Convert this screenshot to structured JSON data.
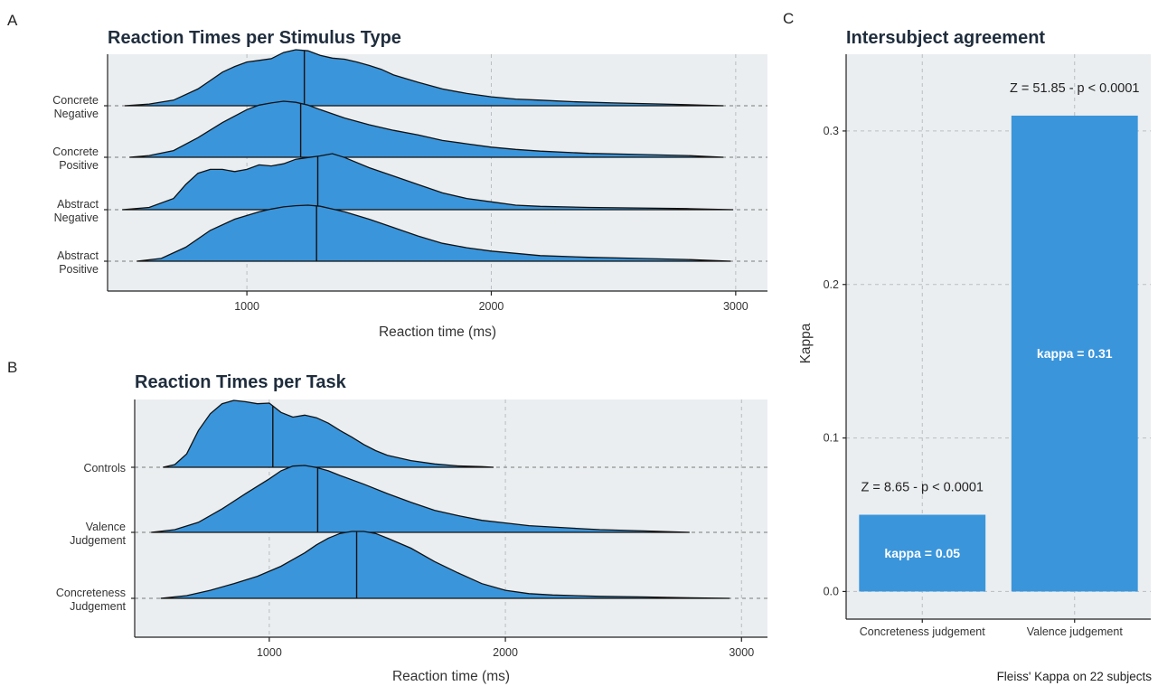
{
  "panels": {
    "a": "A",
    "b": "B",
    "c": "C"
  },
  "chart_data": [
    {
      "type": "ridgeline",
      "title": "Reaction Times per Stimulus Type",
      "xlabel": "Reaction time (ms)",
      "ylabel": "",
      "xlim": [
        430,
        3130
      ],
      "xticks": [
        1000,
        2000,
        3000
      ],
      "grid": true,
      "series": [
        {
          "name": "Concrete Negative",
          "label_lines": [
            "Concrete",
            "Negative"
          ],
          "median": 1235,
          "x": [
            500,
            600,
            700,
            800,
            850,
            900,
            950,
            1000,
            1050,
            1100,
            1150,
            1200,
            1250,
            1300,
            1350,
            1400,
            1450,
            1500,
            1550,
            1600,
            1700,
            1800,
            1900,
            2000,
            2100,
            2200,
            2350,
            2500,
            2700,
            2950
          ],
          "y": [
            0.0,
            0.03,
            0.1,
            0.3,
            0.45,
            0.6,
            0.7,
            0.78,
            0.81,
            0.84,
            0.95,
            1.0,
            0.98,
            0.9,
            0.85,
            0.83,
            0.78,
            0.72,
            0.65,
            0.55,
            0.42,
            0.3,
            0.22,
            0.16,
            0.12,
            0.1,
            0.07,
            0.05,
            0.03,
            0.0
          ]
        },
        {
          "name": "Concrete Positive",
          "label_lines": [
            "Concrete",
            "Positive"
          ],
          "median": 1220,
          "x": [
            520,
            600,
            700,
            800,
            900,
            1000,
            1050,
            1100,
            1150,
            1200,
            1250,
            1300,
            1400,
            1500,
            1600,
            1700,
            1800,
            1900,
            2000,
            2100,
            2200,
            2400,
            2600,
            2800,
            2950
          ],
          "y": [
            0.0,
            0.03,
            0.12,
            0.35,
            0.62,
            0.85,
            0.93,
            0.97,
            1.0,
            0.98,
            0.93,
            0.85,
            0.7,
            0.58,
            0.48,
            0.4,
            0.3,
            0.24,
            0.18,
            0.14,
            0.11,
            0.07,
            0.05,
            0.03,
            0.0
          ]
        },
        {
          "name": "Abstract Negative",
          "label_lines": [
            "Abstract",
            "Negative"
          ],
          "median": 1290,
          "x": [
            490,
            600,
            700,
            750,
            800,
            850,
            900,
            950,
            1000,
            1050,
            1100,
            1150,
            1200,
            1250,
            1300,
            1350,
            1400,
            1500,
            1600,
            1700,
            1800,
            1900,
            2000,
            2100,
            2200,
            2400,
            2600,
            2800,
            2990
          ],
          "y": [
            0.0,
            0.04,
            0.2,
            0.45,
            0.65,
            0.72,
            0.72,
            0.68,
            0.72,
            0.8,
            0.78,
            0.82,
            0.9,
            0.93,
            0.96,
            1.0,
            0.93,
            0.75,
            0.6,
            0.45,
            0.3,
            0.2,
            0.14,
            0.08,
            0.06,
            0.04,
            0.03,
            0.02,
            0.0
          ]
        },
        {
          "name": "Abstract Positive",
          "label_lines": [
            "Abstract",
            "Positive"
          ],
          "median": 1285,
          "x": [
            550,
            650,
            750,
            850,
            950,
            1050,
            1100,
            1150,
            1200,
            1250,
            1300,
            1350,
            1400,
            1500,
            1600,
            1700,
            1800,
            1900,
            2000,
            2100,
            2200,
            2400,
            2600,
            2800,
            2980
          ],
          "y": [
            0.0,
            0.05,
            0.25,
            0.55,
            0.75,
            0.88,
            0.93,
            0.97,
            0.99,
            1.0,
            0.98,
            0.93,
            0.88,
            0.75,
            0.6,
            0.45,
            0.32,
            0.24,
            0.18,
            0.14,
            0.1,
            0.07,
            0.05,
            0.03,
            0.0
          ]
        }
      ]
    },
    {
      "type": "ridgeline",
      "title": "Reaction Times per Task",
      "xlabel": "Reaction time (ms)",
      "ylabel": "",
      "xlim": [
        430,
        3110
      ],
      "xticks": [
        1000,
        2000,
        3000
      ],
      "grid": true,
      "series": [
        {
          "name": "Controls",
          "label_lines": [
            "Controls"
          ],
          "median": 1015,
          "x": [
            550,
            600,
            650,
            700,
            750,
            800,
            850,
            900,
            950,
            1000,
            1050,
            1100,
            1150,
            1200,
            1250,
            1300,
            1350,
            1400,
            1450,
            1500,
            1600,
            1700,
            1800,
            1900,
            1950
          ],
          "y": [
            0.0,
            0.04,
            0.2,
            0.55,
            0.8,
            0.95,
            1.0,
            0.98,
            0.95,
            0.96,
            0.82,
            0.75,
            0.78,
            0.74,
            0.66,
            0.55,
            0.45,
            0.34,
            0.25,
            0.18,
            0.1,
            0.05,
            0.02,
            0.01,
            0.0
          ]
        },
        {
          "name": "Valence Judgement",
          "label_lines": [
            "Valence",
            "Judgement"
          ],
          "median": 1205,
          "x": [
            500,
            600,
            700,
            800,
            900,
            1000,
            1050,
            1100,
            1150,
            1200,
            1250,
            1300,
            1400,
            1500,
            1600,
            1700,
            1800,
            1900,
            2000,
            2100,
            2200,
            2300,
            2400,
            2600,
            2780
          ],
          "y": [
            0.0,
            0.04,
            0.15,
            0.35,
            0.58,
            0.8,
            0.92,
            0.99,
            1.0,
            0.97,
            0.92,
            0.85,
            0.72,
            0.58,
            0.45,
            0.33,
            0.25,
            0.18,
            0.14,
            0.1,
            0.08,
            0.06,
            0.04,
            0.02,
            0.0
          ]
        },
        {
          "name": "Concreteness Judgement",
          "label_lines": [
            "Concreteness",
            "Judgement"
          ],
          "median": 1370,
          "x": [
            540,
            650,
            750,
            850,
            950,
            1050,
            1100,
            1150,
            1200,
            1250,
            1300,
            1350,
            1400,
            1450,
            1500,
            1600,
            1700,
            1800,
            1900,
            2000,
            2100,
            2200,
            2400,
            2600,
            2750,
            2950
          ],
          "y": [
            0.0,
            0.04,
            0.12,
            0.22,
            0.33,
            0.48,
            0.58,
            0.68,
            0.8,
            0.9,
            0.97,
            1.0,
            1.0,
            0.97,
            0.9,
            0.75,
            0.55,
            0.38,
            0.22,
            0.12,
            0.07,
            0.05,
            0.03,
            0.02,
            0.01,
            0.0
          ]
        }
      ]
    },
    {
      "type": "bar",
      "title": "Intersubject agreement",
      "xlabel": "",
      "ylabel": "Kappa",
      "ylim": [
        -0.018,
        0.35
      ],
      "yticks": [
        "0.0",
        "0.1",
        "0.2",
        "0.3"
      ],
      "grid": true,
      "categories": [
        "Concreteness judgement",
        "Valence judgement"
      ],
      "values": [
        0.05,
        0.31
      ],
      "bar_labels": [
        "kappa =  0.05",
        "kappa =  0.31"
      ],
      "annotations": [
        "Z =  8.65  - p < 0.0001",
        "Z =  51.85  - p  < 0.0001"
      ],
      "caption": "Fleiss' Kappa on 22 subjects",
      "colors": {
        "bar": "#3a95db",
        "panel_bg": "#ebeef0",
        "text": "#1f2d3d"
      }
    }
  ]
}
